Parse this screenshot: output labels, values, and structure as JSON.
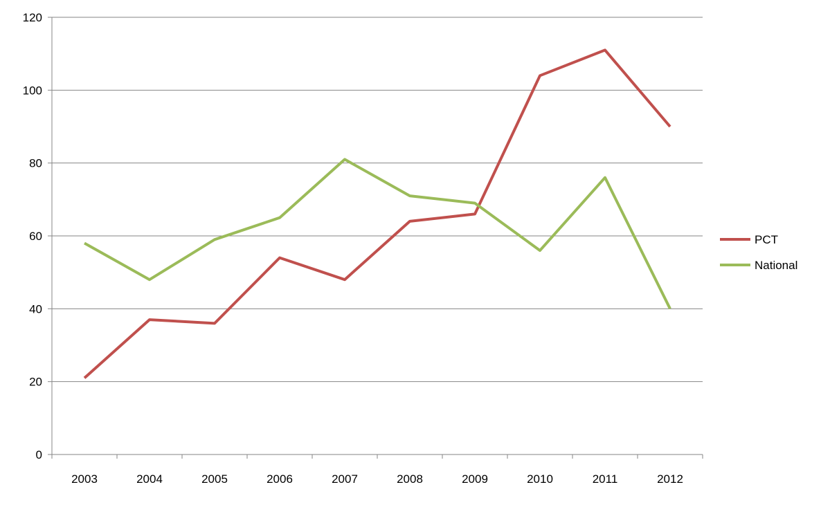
{
  "chart_data": {
    "type": "line",
    "title": "",
    "xlabel": "",
    "ylabel": "",
    "categories": [
      "2003",
      "2004",
      "2005",
      "2006",
      "2007",
      "2008",
      "2009",
      "2010",
      "2011",
      "2012"
    ],
    "ylim": [
      0,
      120
    ],
    "yticks": [
      0,
      20,
      40,
      60,
      80,
      100,
      120
    ],
    "grid": true,
    "legend": "right",
    "series": [
      {
        "name": "PCT",
        "color": "#c0504d",
        "values": [
          21,
          37,
          36,
          54,
          48,
          64,
          66,
          104,
          111,
          90
        ]
      },
      {
        "name": "National",
        "color": "#9bbb59",
        "values": [
          58,
          48,
          59,
          65,
          81,
          71,
          69,
          56,
          76,
          40
        ]
      }
    ]
  }
}
